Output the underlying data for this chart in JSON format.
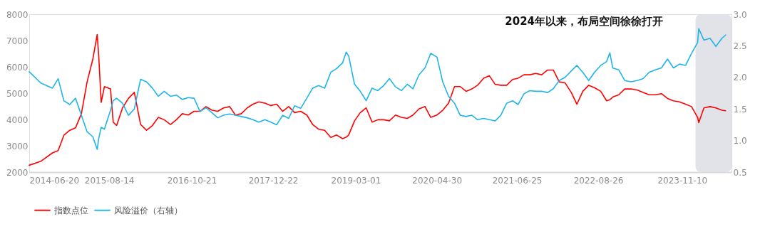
{
  "chart_data": {
    "type": "line",
    "annotations": [
      "2024年以来，布局空间徐徐打开"
    ],
    "x": [
      "2014-06-20",
      "2014-08-20",
      "2014-10-20",
      "2014-11-19",
      "2014-12-19",
      "2015-01-19",
      "2015-02-18",
      "2015-03-21",
      "2015-04-20",
      "2015-05-20",
      "2015-06-12",
      "2015-06-20",
      "2015-07-03",
      "2015-07-20",
      "2015-08-21",
      "2015-09-04",
      "2015-09-22",
      "2015-10-23",
      "2015-11-23",
      "2015-12-24",
      "2016-01-26",
      "2016-02-26",
      "2016-03-28",
      "2016-04-28",
      "2016-05-29",
      "2016-07-01",
      "2016-08-01",
      "2016-09-01",
      "2016-10-02",
      "2016-11-02",
      "2016-12-03",
      "2017-01-04",
      "2017-02-04",
      "2017-03-06",
      "2017-04-06",
      "2017-05-08",
      "2017-06-07",
      "2017-07-08",
      "2017-08-08",
      "2017-09-07",
      "2017-10-08",
      "2017-11-09",
      "2017-12-10",
      "2018-01-10",
      "2018-02-10",
      "2018-03-14",
      "2018-04-14",
      "2018-05-16",
      "2018-06-17",
      "2018-07-18",
      "2018-08-18",
      "2018-09-19",
      "2018-10-21",
      "2018-11-21",
      "2018-12-22",
      "2019-01-10",
      "2019-01-23",
      "2019-02-23",
      "2019-03-25",
      "2019-04-25",
      "2019-05-26",
      "2019-06-25",
      "2019-07-26",
      "2019-08-25",
      "2019-09-26",
      "2019-10-27",
      "2019-11-27",
      "2019-12-27",
      "2020-01-27",
      "2020-02-28",
      "2020-03-29",
      "2020-05-01",
      "2020-05-31",
      "2020-07-01",
      "2020-08-01",
      "2020-08-31",
      "2020-10-01",
      "2020-10-31",
      "2020-11-30",
      "2021-01-01",
      "2021-01-31",
      "2021-03-02",
      "2021-04-01",
      "2021-05-02",
      "2021-06-02",
      "2021-07-01",
      "2021-08-01",
      "2021-08-31",
      "2021-10-02",
      "2021-11-02",
      "2021-12-03",
      "2022-01-02",
      "2022-02-02",
      "2022-03-05",
      "2022-04-06",
      "2022-05-06",
      "2022-06-06",
      "2022-07-07",
      "2022-08-06",
      "2022-09-08",
      "2022-10-09",
      "2022-10-26",
      "2022-11-10",
      "2022-12-12",
      "2023-01-12",
      "2023-02-14",
      "2023-03-18",
      "2023-04-19",
      "2023-05-20",
      "2023-06-21",
      "2023-07-24",
      "2023-08-25",
      "2023-09-25",
      "2023-10-27",
      "2023-11-28",
      "2023-12-29",
      "2024-01-30",
      "2024-02-05",
      "2024-03-03",
      "2024-04-04",
      "2024-05-05",
      "2024-06-06",
      "2024-06-25"
    ],
    "series": [
      {
        "name": "指数点位",
        "color": "#ff0000",
        "values": [
          2260,
          2410,
          2730,
          2820,
          3400,
          3590,
          3680,
          4220,
          5430,
          6290,
          7230,
          6420,
          4650,
          5250,
          5160,
          3900,
          3770,
          4440,
          4800,
          5030,
          3810,
          3590,
          3770,
          4080,
          3990,
          3810,
          3990,
          4220,
          4170,
          4310,
          4310,
          4490,
          4350,
          4310,
          4440,
          4490,
          4170,
          4220,
          4440,
          4580,
          4670,
          4620,
          4530,
          4580,
          4310,
          4490,
          4260,
          4310,
          4170,
          3810,
          3630,
          3590,
          3320,
          3410,
          3270,
          3330,
          3410,
          3950,
          4260,
          4440,
          3900,
          3990,
          3990,
          3950,
          4170,
          4080,
          4040,
          4170,
          4400,
          4490,
          4080,
          4170,
          4350,
          4620,
          5250,
          5250,
          5070,
          5160,
          5300,
          5570,
          5660,
          5340,
          5300,
          5300,
          5520,
          5570,
          5700,
          5700,
          5750,
          5700,
          5880,
          5880,
          5430,
          5390,
          5030,
          4580,
          5070,
          5300,
          5210,
          5070,
          4710,
          4750,
          4850,
          4940,
          5160,
          5160,
          5120,
          5030,
          4940,
          4940,
          4980,
          4800,
          4710,
          4670,
          4580,
          4490,
          4080,
          3880,
          4440,
          4490,
          4440,
          4350,
          4330
        ]
      },
      {
        "name": "风险溢价（右轴）",
        "color": "#1fb4ea",
        "axis": "y2",
        "values": [
          2.09,
          1.91,
          1.83,
          1.98,
          1.63,
          1.57,
          1.67,
          1.4,
          1.14,
          1.06,
          0.86,
          1.03,
          1.21,
          1.18,
          1.48,
          1.63,
          1.67,
          1.59,
          1.4,
          1.5,
          1.97,
          1.93,
          1.83,
          1.7,
          1.78,
          1.7,
          1.72,
          1.65,
          1.68,
          1.67,
          1.46,
          1.52,
          1.44,
          1.36,
          1.4,
          1.42,
          1.4,
          1.38,
          1.36,
          1.33,
          1.29,
          1.33,
          1.29,
          1.25,
          1.4,
          1.35,
          1.55,
          1.51,
          1.67,
          1.83,
          1.87,
          1.83,
          2.08,
          2.14,
          2.23,
          2.4,
          2.34,
          1.89,
          1.78,
          1.63,
          1.83,
          1.79,
          1.87,
          1.98,
          1.85,
          1.79,
          1.89,
          1.82,
          2.04,
          2.15,
          2.38,
          2.32,
          1.93,
          1.7,
          1.59,
          1.4,
          1.38,
          1.4,
          1.33,
          1.35,
          1.33,
          1.31,
          1.4,
          1.59,
          1.63,
          1.57,
          1.74,
          1.79,
          1.78,
          1.78,
          1.76,
          1.82,
          1.95,
          2.0,
          2.1,
          2.19,
          2.08,
          1.95,
          2.08,
          2.19,
          2.25,
          2.39,
          2.15,
          2.12,
          1.95,
          1.93,
          1.95,
          1.98,
          2.08,
          2.12,
          2.15,
          2.29,
          2.15,
          2.21,
          2.19,
          2.38,
          2.55,
          2.77,
          2.59,
          2.62,
          2.49,
          2.62,
          2.67
        ]
      }
    ],
    "xlim": [
      "2014-06-20",
      "2024-07-26"
    ],
    "xticks": [
      "2014-06-20",
      "2015-08-14",
      "2016-10-21",
      "2017-12-22",
      "2019-03-01",
      "2020-04-30",
      "2021-06-25",
      "2022-08-26",
      "2023-11-10"
    ],
    "ylim": [
      2000,
      8000
    ],
    "yticks": [
      2000,
      3000,
      4000,
      5000,
      6000,
      7000,
      8000
    ],
    "y2lim": [
      0.5,
      3.0
    ],
    "y2ticks": [
      0.5,
      {
        "value": 1.0,
        "label": "1.0"
      },
      1.5,
      {
        "value": 2.0,
        "label": "2.0"
      },
      2.5,
      {
        "value": 3.0,
        "label": "3.0"
      }
    ],
    "bands": [
      {
        "axis": "x",
        "from": "2024-01-19",
        "to": "2024-07-26",
        "color": "#dfe2e7"
      }
    ],
    "legend": "bottom",
    "grid": false
  }
}
